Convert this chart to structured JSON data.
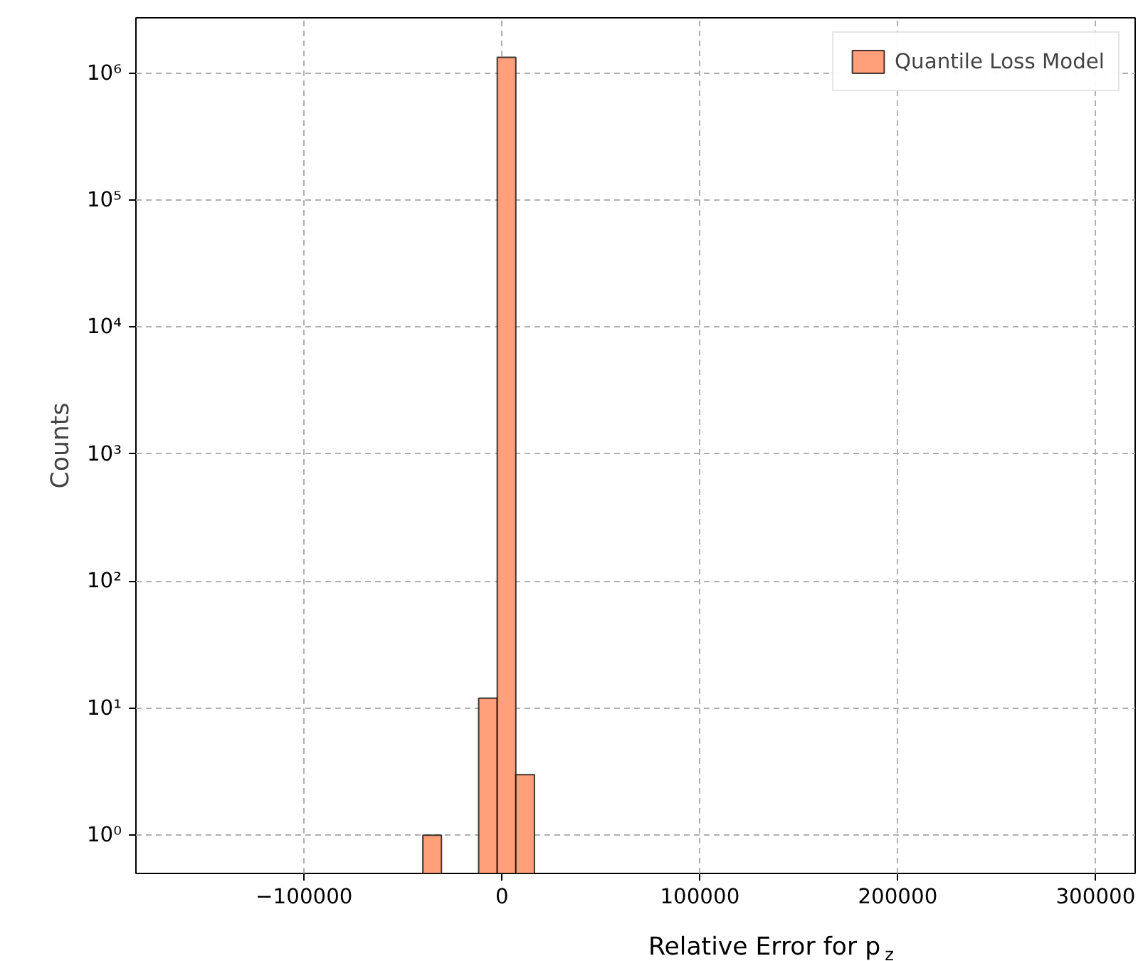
{
  "chart_data": {
    "type": "histogram",
    "xlabel": "Relative Error for p$_{z}$",
    "ylabel": "Counts",
    "bins": [
      -40000,
      -30600,
      -21200,
      -11800,
      -2400,
      7000,
      16400
    ],
    "series": [
      {
        "name": "Quantile Loss Model",
        "color": "#ffa07a",
        "values": [
          1,
          null,
          null,
          12,
          1330000,
          3
        ]
      }
    ],
    "xlim": [
      -185000,
      320000
    ],
    "xticks": [
      {
        "value": -100000,
        "label": "−100000"
      },
      0,
      100000,
      200000,
      300000
    ],
    "ylim": [
      0.5,
      2720000
    ],
    "log": "y",
    "yticks": [
      {
        "value": 1,
        "label": "10⁰"
      },
      {
        "value": 10,
        "label": "10¹"
      },
      {
        "value": 100,
        "label": "10²"
      },
      {
        "value": 1000,
        "label": "10³"
      },
      {
        "value": 10000,
        "label": "10⁴"
      },
      {
        "value": 100000,
        "label": "10⁵"
      },
      {
        "value": 1000000,
        "label": "10⁶"
      }
    ],
    "grid": true,
    "legend": "top right"
  }
}
